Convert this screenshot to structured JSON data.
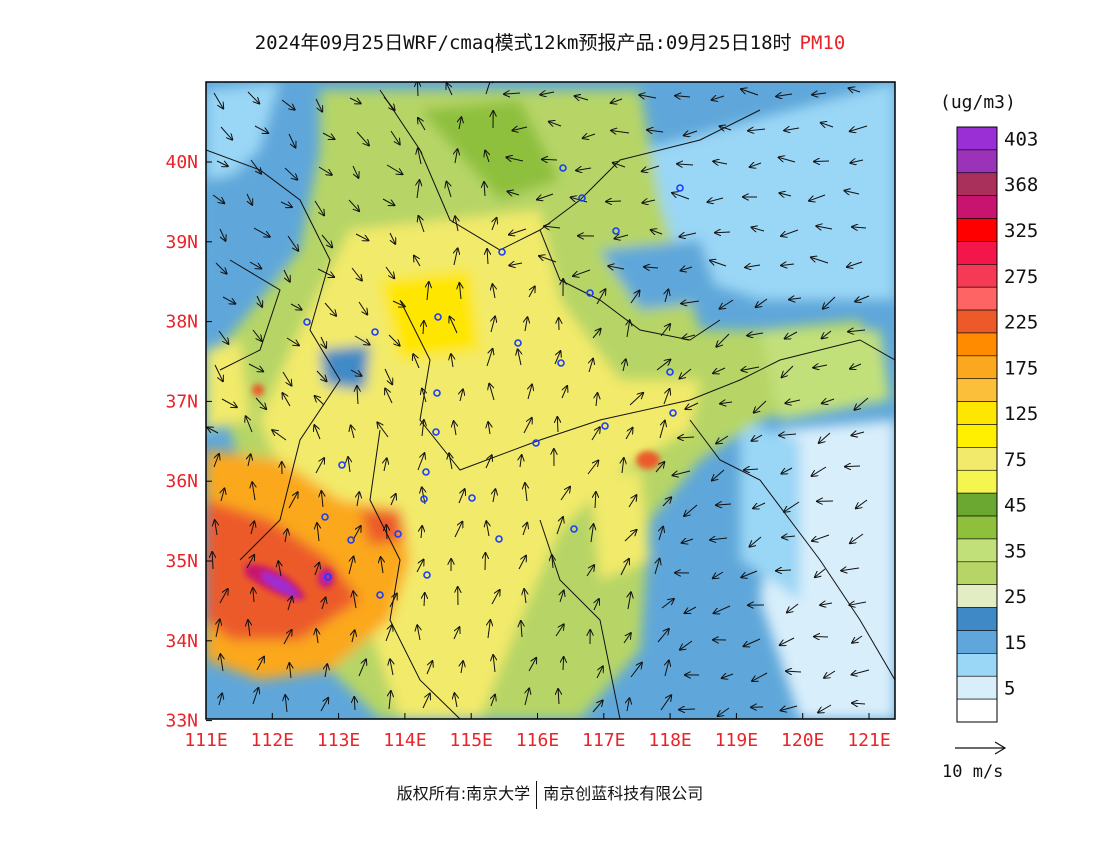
{
  "title": {
    "main": "2024年09月25日WRF/cmaq模式12km预报产品:09月25日18时",
    "variable": "PM10"
  },
  "axes": {
    "lon_ticks": [
      "111E",
      "112E",
      "113E",
      "114E",
      "115E",
      "116E",
      "117E",
      "118E",
      "119E",
      "120E",
      "121E"
    ],
    "lat_ticks": [
      "40N",
      "39N",
      "38N",
      "37N",
      "36N",
      "35N",
      "34N",
      "33N"
    ],
    "lon_range": [
      111,
      121.3
    ],
    "lat_range": [
      33,
      41
    ]
  },
  "legend": {
    "unit": "(ug/m3)",
    "levels": [
      {
        "label": "403",
        "color": "#9b2fd6"
      },
      {
        "label": "",
        "color": "#9a33b8"
      },
      {
        "label": "368",
        "color": "#a8305a"
      },
      {
        "label": "",
        "color": "#c8146e"
      },
      {
        "label": "325",
        "color": "#ff0000"
      },
      {
        "label": "",
        "color": "#f2164b"
      },
      {
        "label": "275",
        "color": "#f53a55"
      },
      {
        "label": "",
        "color": "#ff6464"
      },
      {
        "label": "225",
        "color": "#ec5a2a"
      },
      {
        "label": "",
        "color": "#ff8c00"
      },
      {
        "label": "175",
        "color": "#fba81e"
      },
      {
        "label": "",
        "color": "#fbbf3a"
      },
      {
        "label": "125",
        "color": "#ffe600"
      },
      {
        "label": "",
        "color": "#fff000"
      },
      {
        "label": "75",
        "color": "#f2ea6a"
      },
      {
        "label": "",
        "color": "#f5f550"
      },
      {
        "label": "45",
        "color": "#6aa832"
      },
      {
        "label": "",
        "color": "#8ec03c"
      },
      {
        "label": "35",
        "color": "#c2e07a"
      },
      {
        "label": "",
        "color": "#b6d566"
      },
      {
        "label": "25",
        "color": "#e2edc4"
      },
      {
        "label": "",
        "color": "#3f8ac6"
      },
      {
        "label": "15",
        "color": "#5fa7da"
      },
      {
        "label": "",
        "color": "#9ad6f5"
      },
      {
        "label": "5",
        "color": "#d8eefb"
      },
      {
        "label": "",
        "color": "#ffffff"
      }
    ]
  },
  "wind_scale": {
    "label": "10 m/s"
  },
  "credit": {
    "left": "版权所有:南京大学",
    "right": "南京创蓝科技有限公司"
  }
}
